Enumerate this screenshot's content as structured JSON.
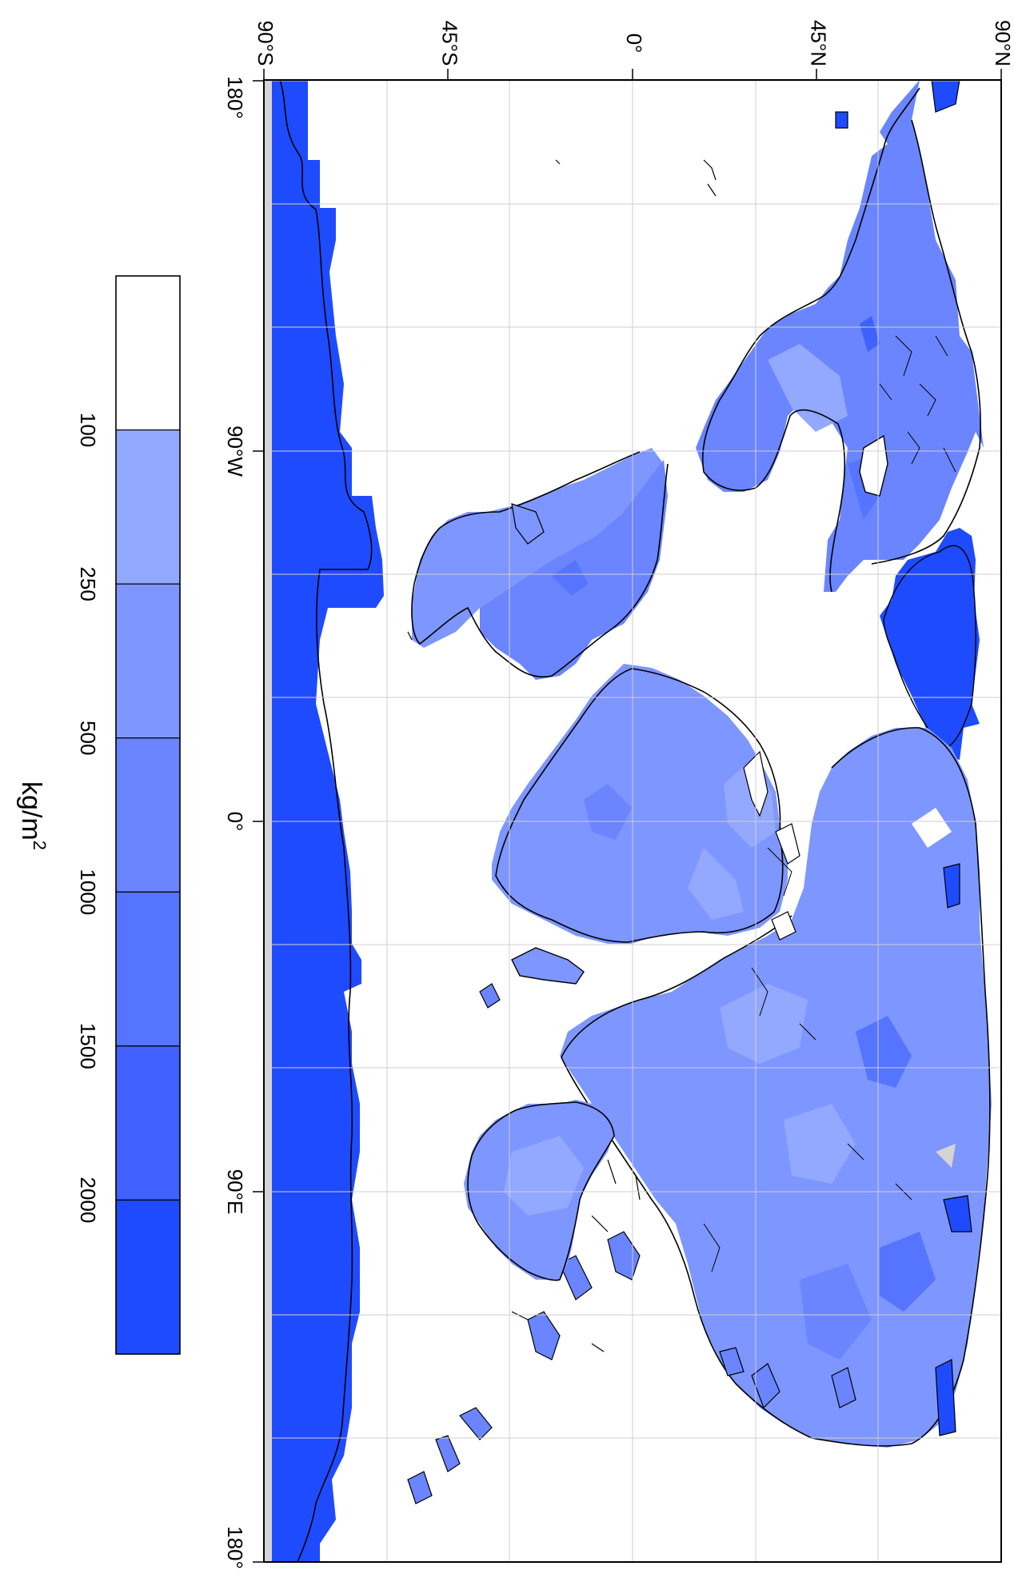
{
  "colorbar": {
    "unit_label": "kg/m",
    "unit_superscript": "2",
    "levels": [
      {
        "label": "100",
        "color": "#ffffff"
      },
      {
        "label": "250",
        "color": "#93a8ff"
      },
      {
        "label": "500",
        "color": "#7e96ff"
      },
      {
        "label": "1000",
        "color": "#6a85ff"
      },
      {
        "label": "1500",
        "color": "#5574ff"
      },
      {
        "label": "2000",
        "color": "#3f61ff"
      },
      {
        "label": "",
        "color": "#1f4bff"
      }
    ]
  },
  "map": {
    "lat_labels": [
      "90°S",
      "45°S",
      "0°",
      "45°N",
      "90°N"
    ],
    "lon_labels": [
      "180°",
      "90°W",
      "0°",
      "90°E",
      "180°"
    ],
    "colors": {
      "ocean": "#ffffff",
      "land_base": "#7e96ff",
      "land_light": "#93a8ff",
      "land_dark": "#6a85ff",
      "ice": "#1f4bff",
      "grid": "#d0d0d0",
      "coast": "#000000",
      "unfilled": "#d4d4d4"
    }
  }
}
